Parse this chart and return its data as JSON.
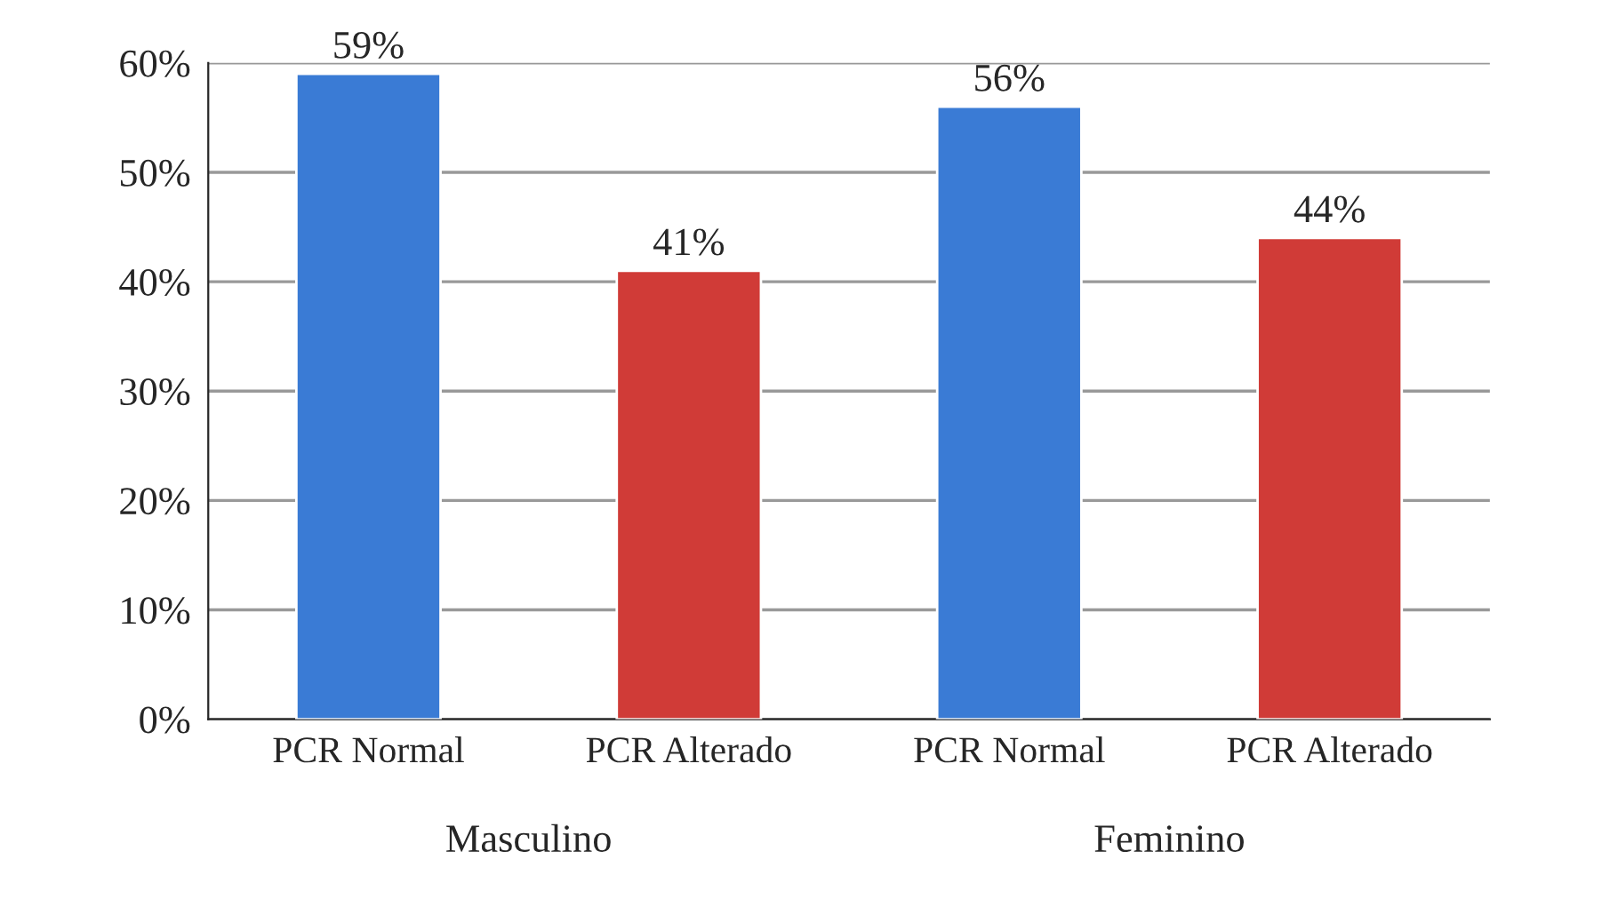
{
  "chart_data": {
    "type": "bar",
    "categories": [
      "PCR Normal",
      "PCR Alterado",
      "PCR Normal",
      "PCR Alterado"
    ],
    "values": [
      59,
      41,
      56,
      44
    ],
    "colors": [
      "#3a7bd5",
      "#d03b37",
      "#3a7bd5",
      "#d03b37"
    ],
    "value_labels": [
      "59%",
      "41%",
      "56%",
      "44%"
    ],
    "annotations": [
      "Masculino",
      "Feminino"
    ],
    "ylim": [
      0,
      60
    ],
    "yticks": [
      {
        "value": 0,
        "label": "0%"
      },
      {
        "value": 10,
        "label": "10%"
      },
      {
        "value": 20,
        "label": "20%"
      },
      {
        "value": 30,
        "label": "30%"
      },
      {
        "value": 40,
        "label": "40%"
      },
      {
        "value": 50,
        "label": "50%"
      },
      {
        "value": 60,
        "label": "60%"
      }
    ],
    "grid": "y",
    "legend": false
  }
}
